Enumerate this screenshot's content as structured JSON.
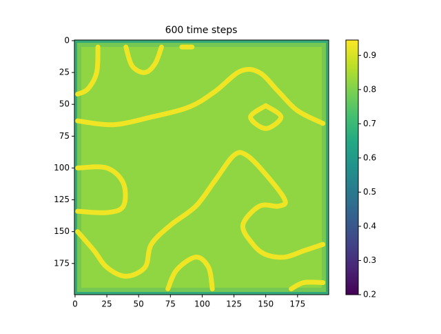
{
  "chart_data": {
    "type": "heatmap",
    "title": "600 time steps",
    "colormap": "viridis",
    "xlim": [
      -0.5,
      199.5
    ],
    "ylim": [
      199.5,
      -0.5
    ],
    "xticks": [
      0,
      25,
      50,
      75,
      100,
      125,
      150,
      175
    ],
    "yticks": [
      0,
      25,
      50,
      75,
      100,
      125,
      150,
      175
    ],
    "clim": [
      0.2,
      0.945
    ],
    "cticks": [
      0.2,
      0.3,
      0.4,
      0.5,
      0.6,
      0.7,
      0.8,
      0.9
    ],
    "field_value": 0.82,
    "edge_value": 0.62,
    "bands": [
      {
        "value": 0.93,
        "x": [
          2,
          10,
          17,
          18
        ],
        "y": [
          42,
          38,
          25,
          5
        ]
      },
      {
        "value": 0.93,
        "x": [
          40,
          45,
          55,
          63,
          68
        ],
        "y": [
          5,
          20,
          25,
          18,
          5
        ]
      },
      {
        "value": 0.93,
        "x": [
          84,
          92
        ],
        "y": [
          5,
          5
        ]
      },
      {
        "value": 0.93,
        "x": [
          2,
          30,
          60,
          90,
          110,
          130,
          145,
          160,
          175,
          195
        ],
        "y": [
          63,
          66,
          60,
          52,
          40,
          24,
          25,
          40,
          55,
          65
        ]
      },
      {
        "value": 0.93,
        "x": [
          150,
          162,
          150,
          138,
          150
        ],
        "y": [
          51,
          60,
          69,
          60,
          51
        ]
      },
      {
        "value": 0.93,
        "x": [
          2,
          25,
          38,
          38,
          25,
          2
        ],
        "y": [
          100,
          100,
          112,
          130,
          135,
          134
        ]
      },
      {
        "value": 0.93,
        "x": [
          2,
          15,
          25,
          40,
          55,
          60,
          75,
          95,
          110,
          125,
          135,
          150,
          165,
          160,
          145,
          132,
          140,
          150,
          165,
          180,
          195
        ],
        "y": [
          150,
          165,
          178,
          185,
          178,
          160,
          145,
          130,
          110,
          90,
          90,
          105,
          125,
          130,
          130,
          145,
          160,
          168,
          170,
          165,
          160
        ]
      },
      {
        "value": 0.93,
        "x": [
          73,
          80,
          95,
          105,
          108
        ],
        "y": [
          195,
          180,
          170,
          178,
          195
        ]
      },
      {
        "value": 0.93,
        "x": [
          170,
          180,
          195
        ],
        "y": [
          195,
          190,
          190
        ]
      }
    ]
  }
}
